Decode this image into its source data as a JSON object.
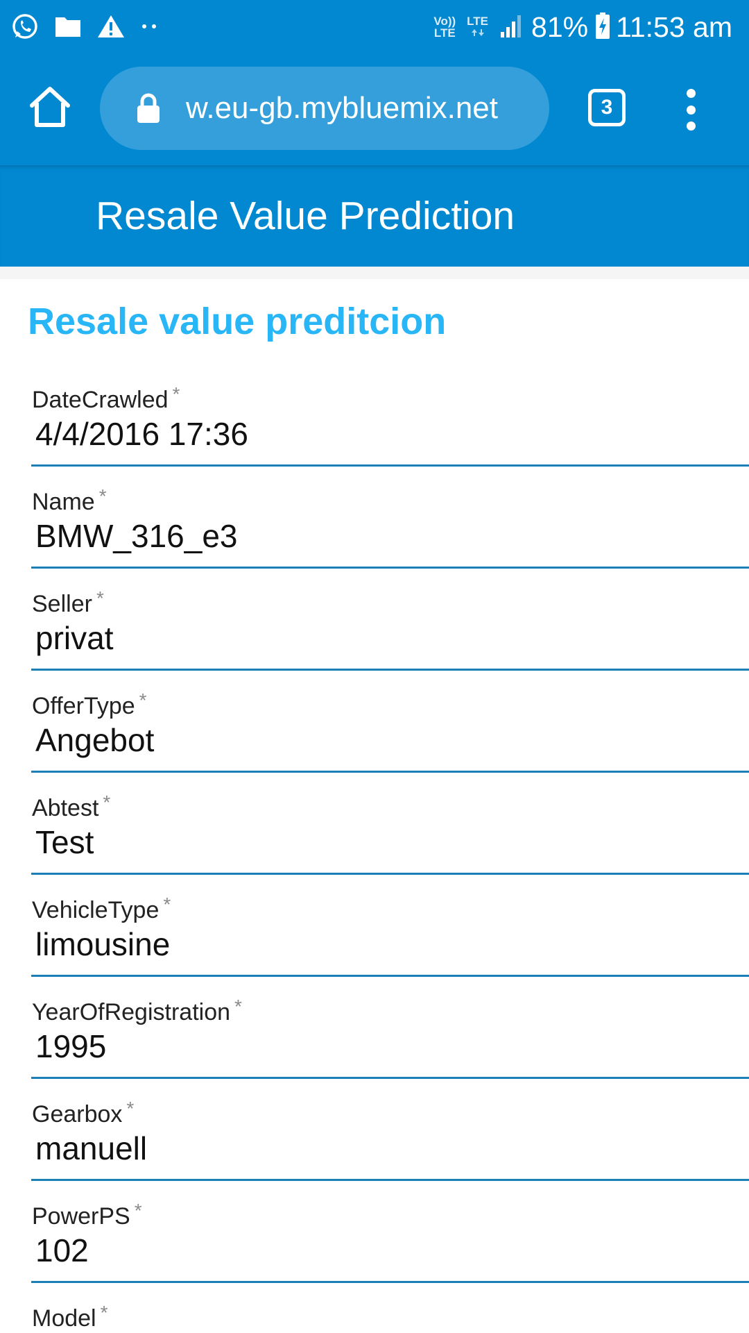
{
  "status_bar": {
    "icons": [
      "whatsapp-icon",
      "folder-icon",
      "warning-icon",
      "more-notifications-icon"
    ],
    "volte_top": "Vo))",
    "volte_bottom": "LTE",
    "lte_label": "LTE",
    "battery_percent": "81%",
    "time": "11:53 am",
    "battery_level": 0.81
  },
  "browser": {
    "url": "w.eu-gb.mybluemix.net",
    "tab_count": "3",
    "icons": [
      "home-icon",
      "lock-icon",
      "tabs-icon",
      "overflow-menu-icon"
    ]
  },
  "app": {
    "title": "Resale Value Prediction",
    "form_title": "Resale value preditcion",
    "required_marker": "*"
  },
  "fields": [
    {
      "label": "DateCrawled",
      "value": "4/4/2016 17:36"
    },
    {
      "label": "Name",
      "value": "BMW_316_e3"
    },
    {
      "label": "Seller",
      "value": "privat"
    },
    {
      "label": "OfferType",
      "value": "Angebot"
    },
    {
      "label": "Abtest",
      "value": "Test"
    },
    {
      "label": "VehicleType",
      "value": "limousine"
    },
    {
      "label": "YearOfRegistration",
      "value": "1995"
    },
    {
      "label": "Gearbox",
      "value": "manuell"
    },
    {
      "label": "PowerPS",
      "value": "102"
    },
    {
      "label": "Model",
      "value": ""
    }
  ],
  "colors": {
    "primary": "#0288d1",
    "form_title": "#29b6f6",
    "underline": "#1b7fb8"
  }
}
